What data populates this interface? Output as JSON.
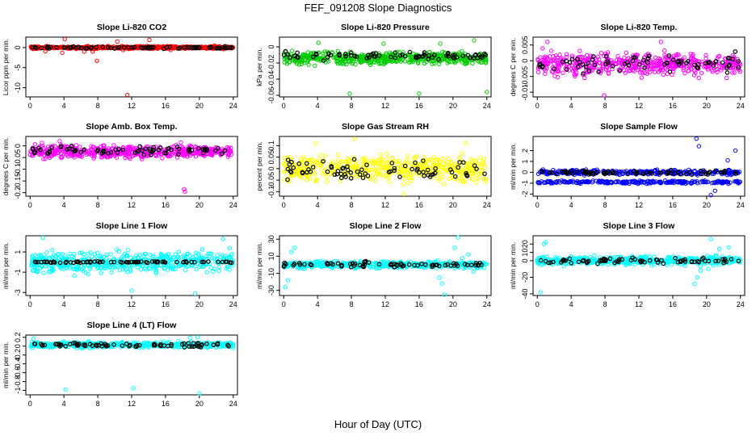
{
  "figure": {
    "title": "FEF_091208  Slope Diagnostics",
    "xlabel": "Hour of Day (UTC)"
  },
  "chart_data": [
    {
      "type": "scatter",
      "title": "Slope Li-820 CO2",
      "ylabel": "Licor ppm per min.",
      "color": "#ff0000",
      "xticks": [
        0,
        4,
        8,
        12,
        16,
        20,
        24
      ],
      "yticks": [
        0,
        -5,
        -10
      ],
      "ylim": [
        -12.3,
        2.6
      ],
      "base": 0,
      "spread": 0.25,
      "hi_base": 0,
      "hi_spread": 0.2,
      "outliers": [
        [
          1.8,
          -0.9
        ],
        [
          3.8,
          -1.3
        ],
        [
          4.1,
          2.1
        ],
        [
          6.4,
          -1.0
        ],
        [
          7.4,
          -1.0
        ],
        [
          7.9,
          -3.3
        ],
        [
          10.3,
          1.5
        ],
        [
          11.0,
          -0.6
        ],
        [
          11.5,
          -11.8
        ],
        [
          13.8,
          0.4
        ],
        [
          14.1,
          1.9
        ],
        [
          16.6,
          -0.6
        ],
        [
          21.8,
          0.5
        ]
      ]
    },
    {
      "type": "scatter",
      "title": "Slope Li-820 Pressure",
      "ylabel": "kPa per min.",
      "color": "#00cc00",
      "xticks": [
        0,
        4,
        8,
        12,
        16,
        20,
        24
      ],
      "yticks": [
        0,
        -0.02,
        -0.04,
        -0.06
      ],
      "ylim": [
        -0.062,
        0.012
      ],
      "base": -0.014,
      "spread": 0.006,
      "hi_base": -0.011,
      "hi_spread": 0.004,
      "outliers": [
        [
          1.0,
          -0.005
        ],
        [
          4.1,
          0.005
        ],
        [
          7.8,
          -0.058
        ],
        [
          11.8,
          0.004
        ],
        [
          16.0,
          -0.058
        ],
        [
          18.5,
          0.004
        ],
        [
          22.5,
          0.008
        ],
        [
          24.0,
          -0.056
        ]
      ]
    },
    {
      "type": "scatter",
      "title": "Slope Li-820 Temp.",
      "ylabel": "degrees C per min.",
      "color": "#ff00ff",
      "xticks": [
        0,
        4,
        8,
        12,
        16,
        20,
        24
      ],
      "yticks": [
        0.005,
        0,
        -0.005,
        -0.01
      ],
      "ylim": [
        -0.0115,
        0.0075
      ],
      "base": -0.001,
      "spread": 0.0028,
      "hi_base": -0.0008,
      "hi_spread": 0.0022,
      "outliers": [
        [
          7.9,
          -0.011
        ],
        [
          1.2,
          0.006
        ],
        [
          14.6,
          0.006
        ]
      ]
    },
    {
      "type": "scatter",
      "title": "Slope Amb. Box Temp.",
      "ylabel": "degrees C per min.",
      "color": "#ff00ff",
      "xticks": [
        0,
        4,
        8,
        12,
        16,
        20,
        24
      ],
      "yticks": [
        0,
        -0.05,
        -0.1,
        -0.15,
        -0.2
      ],
      "ylim": [
        -0.215,
        0.04
      ],
      "base": -0.025,
      "spread": 0.022,
      "hi_base": -0.02,
      "hi_spread": 0.016,
      "outliers": [
        [
          18.2,
          -0.185
        ],
        [
          18.3,
          -0.195
        ],
        [
          3.5,
          0.02
        ]
      ]
    },
    {
      "type": "scatter",
      "title": "Slope Gas Stream RH",
      "ylabel": "percent per min.",
      "color": "#ffff00",
      "xticks": [
        0,
        4,
        8,
        12,
        16,
        20,
        24
      ],
      "yticks": [
        -0.1,
        -0.05,
        0,
        0.05,
        0.1
      ],
      "ylim": [
        -0.12,
        0.14
      ],
      "base": 0,
      "spread": 0.045,
      "hi_base": 0,
      "hi_spread": 0.035,
      "outliers": [
        [
          3.8,
          0.11
        ],
        [
          8.4,
          0.13
        ],
        [
          14.2,
          -0.11
        ],
        [
          21.5,
          0.11
        ]
      ]
    },
    {
      "type": "scatter",
      "title": "Slope Sample Flow",
      "ylabel": "ml/min per min.",
      "color": "#0000ff",
      "xticks": [
        0,
        4,
        8,
        12,
        16,
        20,
        24
      ],
      "yticks": [
        -2,
        -1,
        0,
        1,
        2
      ],
      "ylim": [
        -2.2,
        3.3
      ],
      "base": 0.0,
      "spread": 0.18,
      "band2": -0.9,
      "hi_base": 0,
      "hi_spread": 0.15,
      "outliers": [
        [
          18.8,
          3.1
        ],
        [
          19.1,
          2.4
        ],
        [
          20.5,
          -2.1
        ],
        [
          23.4,
          2.0
        ],
        [
          22.5,
          1.1
        ],
        [
          21.0,
          -1.7
        ]
      ]
    },
    {
      "type": "scatter",
      "title": "Slope Line 1 Flow",
      "ylabel": "ml/min per min.",
      "color": "#00ffff",
      "xticks": [
        0,
        4,
        8,
        12,
        16,
        20,
        24
      ],
      "yticks": [
        -3,
        -1,
        1
      ],
      "ylim": [
        -3.3,
        2.6
      ],
      "base": 0,
      "spread": 0.8,
      "hi_base": 0,
      "hi_spread": 0.05,
      "outliers": [
        [
          1.5,
          2.4
        ],
        [
          12.0,
          -2.8
        ],
        [
          19.5,
          -3.1
        ],
        [
          22.8,
          2.3
        ]
      ]
    },
    {
      "type": "scatter",
      "title": "Slope Line 2 Flow",
      "ylabel": "ml/min per min.",
      "color": "#00ffff",
      "xticks": [
        0,
        4,
        8,
        12,
        16,
        20,
        24
      ],
      "yticks": [
        -30,
        -10,
        10,
        30
      ],
      "ylim": [
        -36,
        34
      ],
      "base": 0,
      "spread": 3,
      "hi_base": 0,
      "hi_spread": 2.5,
      "outliers": [
        [
          0.2,
          -26
        ],
        [
          0.5,
          -18
        ],
        [
          0.9,
          15
        ],
        [
          1.3,
          20
        ],
        [
          18.4,
          -15
        ],
        [
          18.7,
          -22
        ],
        [
          19.0,
          -35
        ],
        [
          20.2,
          20
        ],
        [
          20.6,
          32
        ],
        [
          21.1,
          8
        ],
        [
          21.8,
          12
        ],
        [
          22.4,
          -8
        ]
      ]
    },
    {
      "type": "scatter",
      "title": "Slope Line 3 Flow",
      "ylabel": "ml/min per min.",
      "color": "#00ffff",
      "xticks": [
        0,
        4,
        8,
        12,
        16,
        20,
        24
      ],
      "yticks": [
        -40,
        -20,
        0,
        10,
        20
      ],
      "ylim": [
        -42,
        30
      ],
      "base": 0,
      "spread": 4,
      "hi_base": 0,
      "hi_spread": 3,
      "outliers": [
        [
          0.4,
          -38
        ],
        [
          0.8,
          20
        ],
        [
          1.0,
          22
        ],
        [
          18.6,
          -28
        ],
        [
          18.9,
          -20
        ],
        [
          19.3,
          -12
        ],
        [
          20.2,
          -10
        ],
        [
          20.5,
          26
        ],
        [
          21.5,
          14
        ],
        [
          22.6,
          16
        ]
      ]
    },
    {
      "type": "scatter",
      "title": "Slope Line 4 (LT) Flow",
      "ylabel": "ml/min per min.",
      "color": "#00ffff",
      "xticks": [
        0,
        4,
        8,
        12,
        16,
        20,
        24
      ],
      "yticks": [
        0.2,
        0,
        -0.2,
        -0.4,
        -0.6,
        -0.8,
        -1
      ],
      "ylim": [
        -1.1,
        0.25
      ],
      "base": 0.03,
      "spread": 0.05,
      "hi_base": 0.03,
      "hi_spread": 0.04,
      "outliers": [
        [
          4.2,
          -0.98
        ],
        [
          12.2,
          -0.95
        ],
        [
          20.0,
          -1.07
        ],
        [
          0.4,
          0.17
        ],
        [
          18.9,
          0.19
        ],
        [
          19.8,
          0.2
        ]
      ]
    }
  ]
}
